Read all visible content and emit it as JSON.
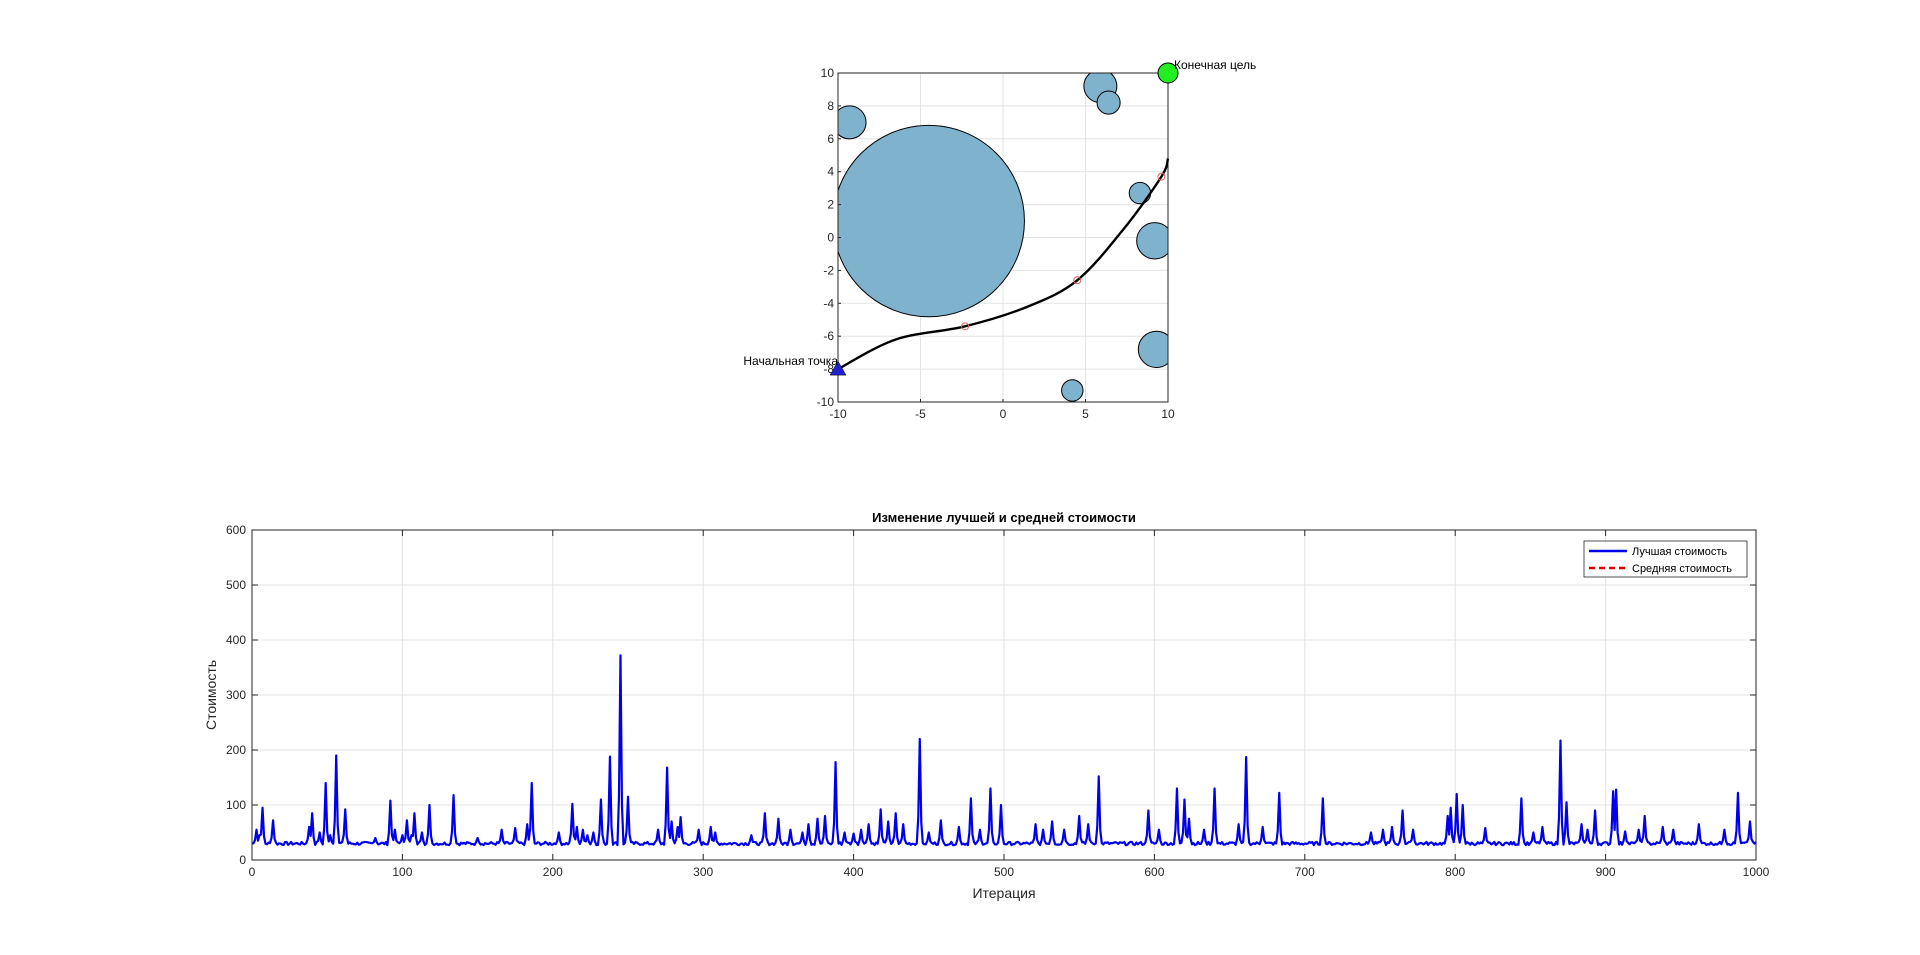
{
  "colors": {
    "obstacle_fill": "#7fb2cc",
    "path": "#000000",
    "waypoints": "#e06060",
    "start_marker": "#2222cc",
    "goal_marker": "#22ee22",
    "best_series": "#0000ee",
    "mean_series": "#dd0000"
  },
  "chart_data": [
    {
      "type": "scatter",
      "title": "",
      "xlabel": "",
      "ylabel": "",
      "xlim": [
        -10,
        10
      ],
      "ylim": [
        -10,
        10
      ],
      "x_ticks": [
        "-10",
        "-5",
        "0",
        "5",
        "10"
      ],
      "y_ticks": [
        "10",
        "8",
        "6",
        "4",
        "2",
        "0",
        "-2",
        "-4",
        "-6",
        "-8",
        "-10"
      ],
      "grid": true,
      "obstacles": [
        {
          "x": -4.5,
          "y": 1.0,
          "r": 5.8
        },
        {
          "x": -9.3,
          "y": 7.0,
          "r": 1.0
        },
        {
          "x": 5.9,
          "y": 9.2,
          "r": 1.0
        },
        {
          "x": 6.4,
          "y": 8.2,
          "r": 0.7
        },
        {
          "x": 8.3,
          "y": 2.7,
          "r": 0.65
        },
        {
          "x": 9.2,
          "y": -0.2,
          "r": 1.1
        },
        {
          "x": 9.3,
          "y": -6.8,
          "r": 1.1
        },
        {
          "x": 4.2,
          "y": -9.3,
          "r": 0.65
        }
      ],
      "path_points": [
        [
          -10,
          -8
        ],
        [
          -6.5,
          -6.2
        ],
        [
          -2.3,
          -5.4
        ],
        [
          1.5,
          -4.2
        ],
        [
          4.5,
          -2.6
        ],
        [
          7.3,
          0.5
        ],
        [
          9.6,
          3.7
        ],
        [
          10,
          4.8
        ]
      ],
      "waypoints": [
        [
          -2.3,
          -5.4
        ],
        [
          4.5,
          -2.6
        ],
        [
          9.6,
          3.7
        ]
      ],
      "start": {
        "x": -10,
        "y": -8,
        "label": "Начальная точка"
      },
      "goal": {
        "x": 10,
        "y": 10,
        "label": "Конечная цель"
      }
    },
    {
      "type": "line",
      "title": "Изменение лучшей и средней стоимости",
      "xlabel": "Итерация",
      "ylabel": "Стоимость",
      "xlim": [
        0,
        1000
      ],
      "ylim": [
        0,
        600
      ],
      "x_ticks": [
        "0",
        "100",
        "200",
        "300",
        "400",
        "500",
        "600",
        "700",
        "800",
        "900",
        "1000"
      ],
      "y_ticks": [
        "600",
        "500",
        "400",
        "300",
        "200",
        "100",
        "0"
      ],
      "grid": true,
      "legend_position": "top-right",
      "series": [
        {
          "name": "Лучшая стоимость",
          "baseline": 30,
          "spikes": [
            [
              3,
              55
            ],
            [
              5,
              45
            ],
            [
              7,
              95
            ],
            [
              14,
              72
            ],
            [
              38,
              60
            ],
            [
              40,
              85
            ],
            [
              45,
              50
            ],
            [
              49,
              140
            ],
            [
              52,
              45
            ],
            [
              56,
              190
            ],
            [
              62,
              92
            ],
            [
              82,
              40
            ],
            [
              92,
              108
            ],
            [
              95,
              55
            ],
            [
              100,
              45
            ],
            [
              103,
              72
            ],
            [
              106,
              45
            ],
            [
              108,
              85
            ],
            [
              113,
              50
            ],
            [
              118,
              100
            ],
            [
              134,
              118
            ],
            [
              150,
              40
            ],
            [
              166,
              55
            ],
            [
              175,
              58
            ],
            [
              183,
              65
            ],
            [
              186,
              140
            ],
            [
              204,
              50
            ],
            [
              213,
              102
            ],
            [
              216,
              60
            ],
            [
              220,
              55
            ],
            [
              223,
              45
            ],
            [
              227,
              50
            ],
            [
              232,
              110
            ],
            [
              238,
              188
            ],
            [
              245,
              372
            ],
            [
              250,
              115
            ],
            [
              270,
              55
            ],
            [
              276,
              168
            ],
            [
              279,
              70
            ],
            [
              283,
              60
            ],
            [
              285,
              78
            ],
            [
              297,
              55
            ],
            [
              305,
              60
            ],
            [
              308,
              50
            ],
            [
              332,
              45
            ],
            [
              341,
              85
            ],
            [
              350,
              75
            ],
            [
              358,
              55
            ],
            [
              366,
              50
            ],
            [
              370,
              65
            ],
            [
              376,
              75
            ],
            [
              381,
              80
            ],
            [
              388,
              178
            ],
            [
              394,
              50
            ],
            [
              400,
              48
            ],
            [
              405,
              55
            ],
            [
              410,
              65
            ],
            [
              418,
              92
            ],
            [
              423,
              70
            ],
            [
              428,
              85
            ],
            [
              433,
              65
            ],
            [
              444,
              220
            ],
            [
              450,
              50
            ],
            [
              458,
              72
            ],
            [
              470,
              60
            ],
            [
              478,
              112
            ],
            [
              484,
              55
            ],
            [
              491,
              130
            ],
            [
              498,
              100
            ],
            [
              521,
              65
            ],
            [
              526,
              55
            ],
            [
              532,
              70
            ],
            [
              540,
              55
            ],
            [
              550,
              80
            ],
            [
              556,
              65
            ],
            [
              563,
              152
            ],
            [
              596,
              90
            ],
            [
              603,
              55
            ],
            [
              615,
              130
            ],
            [
              620,
              110
            ],
            [
              623,
              75
            ],
            [
              633,
              55
            ],
            [
              640,
              130
            ],
            [
              656,
              65
            ],
            [
              661,
              187
            ],
            [
              672,
              60
            ],
            [
              683,
              122
            ],
            [
              712,
              112
            ],
            [
              744,
              50
            ],
            [
              752,
              55
            ],
            [
              758,
              60
            ],
            [
              765,
              90
            ],
            [
              772,
              55
            ],
            [
              795,
              80
            ],
            [
              797,
              95
            ],
            [
              801,
              120
            ],
            [
              805,
              100
            ],
            [
              820,
              58
            ],
            [
              844,
              112
            ],
            [
              852,
              50
            ],
            [
              858,
              60
            ],
            [
              870,
              217
            ],
            [
              874,
              105
            ],
            [
              884,
              65
            ],
            [
              888,
              55
            ],
            [
              893,
              90
            ],
            [
              905,
              125
            ],
            [
              907,
              128
            ],
            [
              913,
              52
            ],
            [
              922,
              55
            ],
            [
              926,
              80
            ],
            [
              938,
              60
            ],
            [
              945,
              55
            ],
            [
              962,
              65
            ],
            [
              979,
              55
            ],
            [
              988,
              122
            ],
            [
              996,
              70
            ]
          ]
        },
        {
          "name": "Средняя стоимость",
          "values": []
        }
      ]
    }
  ]
}
